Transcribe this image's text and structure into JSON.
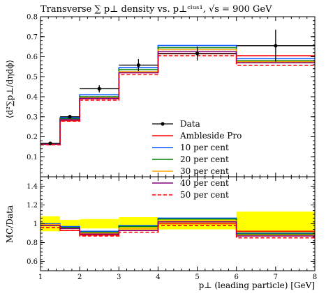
{
  "chart_data": [
    {
      "type": "line",
      "role": "main",
      "title": "Transverse ∑ p⊥ density vs. p⊥ᶜˡᵘˢ¹, √s = 900 GeV",
      "ylabel": "⟨d²∑p⊥/dηdϕ⟩",
      "xlim": [
        1,
        8
      ],
      "ylim": [
        0.0,
        0.8
      ],
      "x_ticks": [
        "1",
        "2",
        "3",
        "4",
        "5",
        "6",
        "7",
        "8"
      ],
      "y_ticks": [
        "0.1",
        "0.2",
        "0.3",
        "0.4",
        "0.5",
        "0.6",
        "0.7",
        "0.8"
      ],
      "bin_edges": [
        1.0,
        1.5,
        2.0,
        3.0,
        4.0,
        6.0,
        8.0
      ],
      "data": {
        "name": "Data",
        "color": "#000000",
        "x": [
          1.25,
          1.75,
          2.5,
          3.5,
          5.0,
          7.0
        ],
        "y": [
          0.167,
          0.3,
          0.44,
          0.558,
          0.616,
          0.655
        ],
        "y_err": [
          0.008,
          0.01,
          0.018,
          0.03,
          0.035,
          0.08
        ]
      },
      "series": [
        {
          "name": "Ambleside Pro",
          "color": "#ff0000",
          "dashed": false,
          "values": [
            0.163,
            0.28,
            0.39,
            0.52,
            0.615,
            0.605
          ]
        },
        {
          "name": "10 per cent",
          "color": "#0055ff",
          "dashed": false,
          "values": [
            0.163,
            0.295,
            0.41,
            0.545,
            0.656,
            0.59
          ]
        },
        {
          "name": "20 per cent",
          "color": "#008000",
          "dashed": false,
          "values": [
            0.163,
            0.29,
            0.4,
            0.535,
            0.645,
            0.58
          ]
        },
        {
          "name": "30 per cent",
          "color": "#ffa500",
          "dashed": false,
          "values": [
            0.163,
            0.285,
            0.395,
            0.525,
            0.635,
            0.575
          ]
        },
        {
          "name": "40 per cent",
          "color": "#800080",
          "dashed": false,
          "values": [
            0.163,
            0.285,
            0.392,
            0.52,
            0.625,
            0.57
          ]
        },
        {
          "name": "50 per cent",
          "color": "#ff0000",
          "dashed": true,
          "values": [
            0.16,
            0.278,
            0.383,
            0.51,
            0.605,
            0.557
          ]
        }
      ],
      "legend_placement": "lower-right"
    },
    {
      "type": "line",
      "role": "ratio",
      "ylabel": "MC/Data",
      "xlabel": "p⊥ (leading particle) [GeV]",
      "xlim": [
        1,
        8
      ],
      "ylim": [
        0.5,
        1.5
      ],
      "x_ticks": [
        "1",
        "2",
        "3",
        "4",
        "5",
        "6",
        "7",
        "8"
      ],
      "y_ticks": [
        "0.6",
        "0.8",
        "1",
        "1.2",
        "1.4"
      ],
      "bin_edges": [
        1.0,
        1.5,
        2.0,
        3.0,
        4.0,
        6.0,
        8.0
      ],
      "band": {
        "color": "#ffff00",
        "lower": [
          0.92,
          0.96,
          0.95,
          0.93,
          0.94,
          0.88
        ],
        "upper": [
          1.08,
          1.04,
          1.05,
          1.07,
          1.06,
          1.13
        ]
      },
      "series": [
        {
          "name": "Ambleside Pro",
          "color": "#ff0000",
          "dashed": false,
          "values": [
            0.98,
            0.93,
            0.88,
            0.93,
            1.0,
            0.92
          ]
        },
        {
          "name": "10 per cent",
          "color": "#0055ff",
          "dashed": false,
          "values": [
            1.0,
            0.97,
            0.92,
            0.98,
            1.06,
            0.9
          ]
        },
        {
          "name": "20 per cent",
          "color": "#008000",
          "dashed": false,
          "values": [
            0.99,
            0.96,
            0.91,
            0.97,
            1.05,
            0.89
          ]
        },
        {
          "name": "30 per cent",
          "color": "#ffa500",
          "dashed": false,
          "values": [
            0.99,
            0.95,
            0.9,
            0.95,
            1.03,
            0.88
          ]
        },
        {
          "name": "40 per cent",
          "color": "#800080",
          "dashed": false,
          "values": [
            0.98,
            0.95,
            0.89,
            0.93,
            1.02,
            0.87
          ]
        },
        {
          "name": "50 per cent",
          "color": "#ff0000",
          "dashed": true,
          "values": [
            0.96,
            0.93,
            0.87,
            0.91,
            0.98,
            0.85
          ]
        }
      ]
    }
  ]
}
